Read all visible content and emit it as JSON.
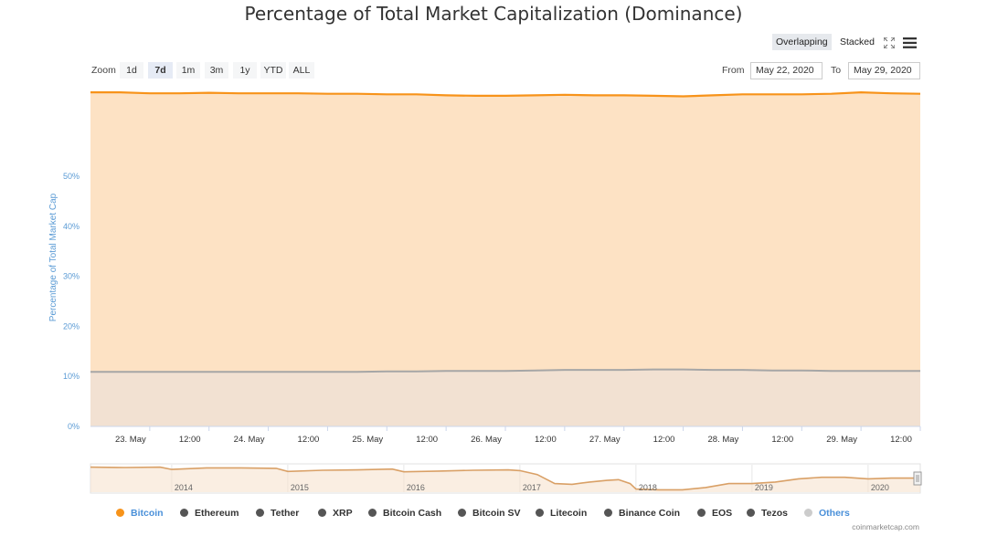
{
  "page": {
    "title": "Percentage of Total Market Capitalization (Dominance)",
    "credits": "coinmarketcap.com"
  },
  "toolbar": {
    "overlapping_label": "Overlapping",
    "stacked_label": "Stacked",
    "active_mode": "Overlapping",
    "icons": [
      "fullscreen-icon",
      "menu-icon"
    ]
  },
  "zoom": {
    "label": "Zoom",
    "buttons": [
      "1d",
      "7d",
      "1m",
      "3m",
      "1y",
      "YTD",
      "ALL"
    ],
    "active": "7d"
  },
  "range": {
    "from_label": "From",
    "from_value": "May 22, 2020",
    "to_label": "To",
    "to_value": "May 29, 2020"
  },
  "colors": {
    "bitcoin": "#f7931a",
    "bitcoin_fill": "#fde2c4",
    "others_line": "#a6a6a6",
    "others_fill": "#f2e1d2",
    "grid": "#e6e6e6",
    "axis_label": "#5b9bd5",
    "navigator_line": "#d9a066"
  },
  "chart_data": {
    "type": "area",
    "title": "Percentage of Total Market Capitalization (Dominance)",
    "ylabel": "Percentage of Total Market Cap",
    "ylim": [
      0,
      67
    ],
    "yticks": [
      "0%",
      "10%",
      "20%",
      "30%",
      "40%",
      "50%"
    ],
    "ytick_values": [
      0,
      10,
      20,
      30,
      40,
      50
    ],
    "xlim": [
      0,
      7
    ],
    "xticks": [
      "23. May",
      "12:00",
      "24. May",
      "12:00",
      "25. May",
      "12:00",
      "26. May",
      "12:00",
      "27. May",
      "12:00",
      "28. May",
      "12:00",
      "29. May",
      "12:00"
    ],
    "xtick_values": [
      0.5,
      1.0,
      1.5,
      2.0,
      2.5,
      3.0,
      3.5,
      4.0,
      4.5,
      5.0,
      5.5,
      6.0,
      6.5,
      7.0
    ],
    "grid": true,
    "legend_position": "bottom",
    "x": [
      0,
      0.25,
      0.5,
      0.75,
      1.0,
      1.25,
      1.5,
      1.75,
      2.0,
      2.25,
      2.5,
      2.75,
      3.0,
      3.25,
      3.5,
      3.75,
      4.0,
      4.25,
      4.5,
      4.75,
      5.0,
      5.25,
      5.5,
      5.75,
      6.0,
      6.25,
      6.5,
      6.75,
      7.0
    ],
    "series": [
      {
        "name": "Bitcoin",
        "values": [
          66.8,
          66.8,
          66.6,
          66.6,
          66.7,
          66.6,
          66.6,
          66.6,
          66.5,
          66.5,
          66.4,
          66.4,
          66.2,
          66.1,
          66.1,
          66.2,
          66.3,
          66.2,
          66.2,
          66.1,
          66.0,
          66.2,
          66.4,
          66.4,
          66.4,
          66.5,
          66.8,
          66.6,
          66.5
        ]
      },
      {
        "name": "Others",
        "values": [
          10.9,
          10.9,
          10.9,
          10.9,
          10.9,
          10.9,
          10.9,
          10.9,
          10.9,
          10.9,
          11.0,
          11.0,
          11.1,
          11.1,
          11.1,
          11.2,
          11.3,
          11.3,
          11.3,
          11.4,
          11.4,
          11.3,
          11.3,
          11.2,
          11.2,
          11.1,
          11.1,
          11.1,
          11.1
        ]
      }
    ],
    "navigator": {
      "labels": [
        "2014",
        "2015",
        "2016",
        "2017",
        "2018",
        "2019",
        "2020"
      ],
      "label_positions": [
        2014,
        2015,
        2016,
        2017,
        2018,
        2019,
        2020
      ],
      "xlim": [
        2013.3,
        2020.45
      ],
      "ylim": [
        30,
        100
      ],
      "x": [
        2013.3,
        2013.6,
        2013.9,
        2014.0,
        2014.3,
        2014.6,
        2014.9,
        2015.0,
        2015.3,
        2015.6,
        2015.9,
        2016.0,
        2016.3,
        2016.6,
        2016.9,
        2017.0,
        2017.15,
        2017.3,
        2017.45,
        2017.6,
        2017.75,
        2017.85,
        2017.95,
        2018.0,
        2018.2,
        2018.4,
        2018.6,
        2018.8,
        2019.0,
        2019.2,
        2019.4,
        2019.6,
        2019.8,
        2020.0,
        2020.2,
        2020.45
      ],
      "values": [
        94,
        93,
        94,
        88,
        92,
        92,
        91,
        83,
        86,
        87,
        89,
        82,
        84,
        86,
        87,
        85,
        75,
        52,
        50,
        56,
        60,
        62,
        52,
        38,
        36,
        36,
        42,
        52,
        52,
        56,
        64,
        68,
        68,
        64,
        66,
        66
      ]
    }
  },
  "legend": [
    {
      "label": "Bitcoin",
      "color": "#f7931a",
      "text_color": "#4a90d9",
      "icon": "circle-marker"
    },
    {
      "label": "Ethereum",
      "color": "#555555",
      "text_color": "#333333",
      "icon": "circle-marker"
    },
    {
      "label": "Tether",
      "color": "#555555",
      "text_color": "#333333",
      "icon": "circle-marker"
    },
    {
      "label": "XRP",
      "color": "#555555",
      "text_color": "#333333",
      "icon": "circle-marker"
    },
    {
      "label": "Bitcoin Cash",
      "color": "#555555",
      "text_color": "#333333",
      "icon": "circle-marker"
    },
    {
      "label": "Bitcoin SV",
      "color": "#555555",
      "text_color": "#333333",
      "icon": "circle-marker"
    },
    {
      "label": "Litecoin",
      "color": "#555555",
      "text_color": "#333333",
      "icon": "circle-marker"
    },
    {
      "label": "Binance Coin",
      "color": "#555555",
      "text_color": "#333333",
      "icon": "circle-marker"
    },
    {
      "label": "EOS",
      "color": "#555555",
      "text_color": "#333333",
      "icon": "circle-marker"
    },
    {
      "label": "Tezos",
      "color": "#555555",
      "text_color": "#333333",
      "icon": "circle-marker"
    },
    {
      "label": "Others",
      "color": "#cccccc",
      "text_color": "#4a90d9",
      "icon": "circle-marker"
    }
  ]
}
